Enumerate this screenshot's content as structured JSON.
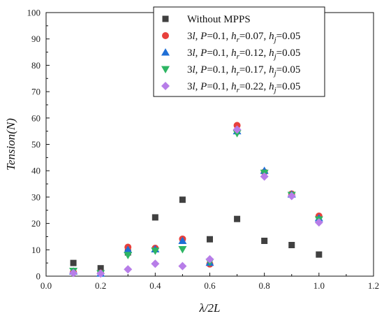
{
  "chart_data": {
    "type": "scatter",
    "xlabel": "λ/2L",
    "ylabel": "Tension(N)",
    "xlim": [
      0.0,
      1.2
    ],
    "ylim": [
      0,
      100
    ],
    "xticks": [
      "0.0",
      "0.2",
      "0.4",
      "0.6",
      "0.8",
      "1.0",
      "1.2"
    ],
    "yticks": [
      "0",
      "10",
      "20",
      "30",
      "40",
      "50",
      "60",
      "70",
      "80",
      "90",
      "100"
    ],
    "grid": false,
    "legend_position": "top-right",
    "series": [
      {
        "name": "Without MPPS",
        "color": "#404040",
        "marker": "square",
        "legend_parts": [
          {
            "t": "Without MPPS",
            "i": false,
            "sub": false
          }
        ],
        "points": [
          [
            0.1,
            5.0
          ],
          [
            0.2,
            3.0
          ],
          [
            0.3,
            9.0
          ],
          [
            0.4,
            22.3
          ],
          [
            0.5,
            29.0
          ],
          [
            0.6,
            14.0
          ],
          [
            0.7,
            21.7
          ],
          [
            0.8,
            13.4
          ],
          [
            0.9,
            11.8
          ],
          [
            1.0,
            8.2
          ]
        ]
      },
      {
        "name": "3l, P=0.1, hr=0.07, hj=0.05",
        "color": "#e8403c",
        "marker": "circle",
        "legend_parts": [
          {
            "t": "3",
            "i": false,
            "sub": false
          },
          {
            "t": "l",
            "i": true,
            "sub": false
          },
          {
            "t": ", ",
            "i": false,
            "sub": false
          },
          {
            "t": "P",
            "i": true,
            "sub": false
          },
          {
            "t": "=0.1, ",
            "i": false,
            "sub": false
          },
          {
            "t": "h",
            "i": true,
            "sub": false
          },
          {
            "t": "r",
            "i": true,
            "sub": true
          },
          {
            "t": "=0.07, ",
            "i": false,
            "sub": false
          },
          {
            "t": "h",
            "i": true,
            "sub": false
          },
          {
            "t": "j",
            "i": true,
            "sub": true
          },
          {
            "t": "=0.05",
            "i": false,
            "sub": false
          }
        ],
        "points": [
          [
            0.1,
            1.5
          ],
          [
            0.2,
            1.2
          ],
          [
            0.3,
            11.0
          ],
          [
            0.4,
            10.6
          ],
          [
            0.5,
            14.1
          ],
          [
            0.6,
            4.6
          ],
          [
            0.7,
            57.2
          ],
          [
            0.8,
            39.5
          ],
          [
            0.9,
            31.2
          ],
          [
            1.0,
            22.8
          ]
        ]
      },
      {
        "name": "3l, P=0.1, hr=0.12, hj=0.05",
        "color": "#1f6fd6",
        "marker": "triangle-up",
        "legend_parts": [
          {
            "t": "3",
            "i": false,
            "sub": false
          },
          {
            "t": "l",
            "i": true,
            "sub": false
          },
          {
            "t": ", ",
            "i": false,
            "sub": false
          },
          {
            "t": "P",
            "i": true,
            "sub": false
          },
          {
            "t": "=0.1, ",
            "i": false,
            "sub": false
          },
          {
            "t": "h",
            "i": true,
            "sub": false
          },
          {
            "t": "r",
            "i": true,
            "sub": true
          },
          {
            "t": "=0.12, ",
            "i": false,
            "sub": false
          },
          {
            "t": "h",
            "i": true,
            "sub": false
          },
          {
            "t": "j",
            "i": true,
            "sub": true
          },
          {
            "t": "=0.05",
            "i": false,
            "sub": false
          }
        ],
        "points": [
          [
            0.1,
            1.8
          ],
          [
            0.2,
            1.0
          ],
          [
            0.3,
            10.0
          ],
          [
            0.4,
            10.2
          ],
          [
            0.5,
            13.4
          ],
          [
            0.6,
            5.1
          ],
          [
            0.7,
            55.0
          ],
          [
            0.8,
            40.0
          ],
          [
            0.9,
            31.0
          ],
          [
            1.0,
            22.0
          ]
        ]
      },
      {
        "name": "3l, P=0.1, hr=0.17, hj=0.05",
        "color": "#2db563",
        "marker": "triangle-down",
        "legend_parts": [
          {
            "t": "3",
            "i": false,
            "sub": false
          },
          {
            "t": "l",
            "i": true,
            "sub": false
          },
          {
            "t": ", ",
            "i": false,
            "sub": false
          },
          {
            "t": "P",
            "i": true,
            "sub": false
          },
          {
            "t": "=0.1, ",
            "i": false,
            "sub": false
          },
          {
            "t": "h",
            "i": true,
            "sub": false
          },
          {
            "t": "r",
            "i": true,
            "sub": true
          },
          {
            "t": "=0.17, ",
            "i": false,
            "sub": false
          },
          {
            "t": "h",
            "i": true,
            "sub": false
          },
          {
            "t": "j",
            "i": true,
            "sub": true
          },
          {
            "t": "=0.05",
            "i": false,
            "sub": false
          }
        ],
        "points": [
          [
            0.1,
            2.0
          ],
          [
            0.2,
            1.1
          ],
          [
            0.3,
            8.0
          ],
          [
            0.4,
            9.6
          ],
          [
            0.5,
            10.2
          ],
          [
            0.6,
            5.4
          ],
          [
            0.7,
            54.2
          ],
          [
            0.8,
            39.2
          ],
          [
            0.9,
            30.8
          ],
          [
            1.0,
            21.5
          ]
        ]
      },
      {
        "name": "3l, P=0.1, hr=0.22, hj=0.05",
        "color": "#b77de8",
        "marker": "diamond",
        "legend_parts": [
          {
            "t": "3",
            "i": false,
            "sub": false
          },
          {
            "t": "l",
            "i": true,
            "sub": false
          },
          {
            "t": ", ",
            "i": false,
            "sub": false
          },
          {
            "t": "P",
            "i": true,
            "sub": false
          },
          {
            "t": "=0.1, ",
            "i": false,
            "sub": false
          },
          {
            "t": "h",
            "i": true,
            "sub": false
          },
          {
            "t": "r",
            "i": true,
            "sub": true
          },
          {
            "t": "=0.22, ",
            "i": false,
            "sub": false
          },
          {
            "t": "h",
            "i": true,
            "sub": false
          },
          {
            "t": "j",
            "i": true,
            "sub": true
          },
          {
            "t": "=0.05",
            "i": false,
            "sub": false
          }
        ],
        "points": [
          [
            0.1,
            1.2
          ],
          [
            0.2,
            1.0
          ],
          [
            0.3,
            2.6
          ],
          [
            0.4,
            4.7
          ],
          [
            0.5,
            3.8
          ],
          [
            0.6,
            6.4
          ],
          [
            0.7,
            55.6
          ],
          [
            0.8,
            37.8
          ],
          [
            0.9,
            30.4
          ],
          [
            1.0,
            20.4
          ]
        ]
      }
    ]
  }
}
